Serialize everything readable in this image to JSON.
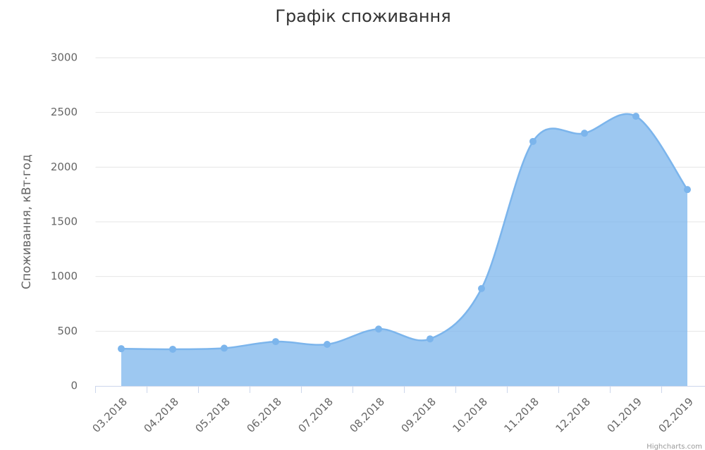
{
  "chart_data": {
    "type": "areaspline",
    "title": "Графік споживання",
    "y_label": "Споживання, кВт·год",
    "credits": "Highcharts.com",
    "categories": [
      "03.2018",
      "04.2018",
      "05.2018",
      "06.2018",
      "07.2018",
      "08.2018",
      "09.2018",
      "10.2018",
      "11.2018",
      "12.2018",
      "01.2019",
      "02.2019"
    ],
    "values": [
      340,
      335,
      345,
      405,
      380,
      520,
      430,
      890,
      2235,
      2310,
      2465,
      1795
    ],
    "color": "#7cb5ec",
    "ylim": [
      0,
      3000
    ],
    "yticks": [
      0,
      500,
      1000,
      1500,
      2000,
      2500,
      3000
    ],
    "grid": true
  }
}
